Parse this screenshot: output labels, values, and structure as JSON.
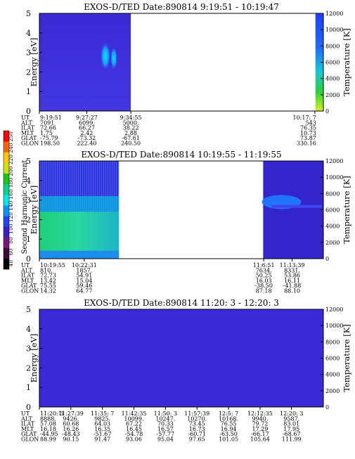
{
  "colorbar": {
    "title": "Second Harmonic Current",
    "ticks": [
      "40",
      "60",
      "80",
      "100",
      "120",
      "140",
      "160",
      "180",
      "200",
      "220",
      "240",
      "250"
    ],
    "colors": [
      "#000000",
      "#3c0a3c",
      "#78147e",
      "#3b1cc8",
      "#2244ff",
      "#0096ff",
      "#00e6e6",
      "#00d28c",
      "#14c814",
      "#c8e600",
      "#ffc800",
      "#ff6400",
      "#ff0000"
    ]
  },
  "row_labels": [
    "UT",
    "ALT",
    "ILAT",
    "MLT",
    "GLAT",
    "GLON"
  ],
  "chart_data": [
    {
      "type": "heatmap",
      "title": "EXOS-D/TED   Date:890814   9:19:51 - 10:19:47",
      "ylabel": "Energy [eV]",
      "ylim": [
        0,
        5
      ],
      "yticks": [
        "0",
        "1",
        "2",
        "3",
        "4",
        "5"
      ],
      "y2label": "Temperature [K]",
      "y2lim": [
        0,
        12000
      ],
      "y2ticks": [
        "0",
        "2000",
        "4000",
        "6000",
        "8000",
        "10000",
        "12000"
      ],
      "data_segments": [
        {
          "x_start": 0.0,
          "x_end": 0.322
        },
        {
          "x_start": 0.972,
          "x_end": 1.0
        }
      ],
      "columns": [
        {
          "x": 0.0,
          "UT": "9:19:51",
          "ALT": "7091",
          "ILAT": "72.66",
          "MLT": "1.75",
          "GLAT": "-75.79",
          "GLON": "198.50"
        },
        {
          "x": 0.167,
          "UT": "9:27:27",
          "ALT": "6099.",
          "ILAT": "66.27",
          "MLT": "2.42",
          "GLAT": "-73.32",
          "GLON": "222.40"
        },
        {
          "x": 0.322,
          "UT": "9:34:55",
          "ALT": "5000.",
          "ILAT": "38.22",
          "MLT": "2.88",
          "GLAT": "-67.61",
          "GLON": "240.50"
        },
        {
          "x": 0.97,
          "UT": "10:17: 7",
          "ALT": "543",
          "ILAT": "76.35",
          "MLT": "10.73",
          "GLAT": "73.87",
          "GLON": "330.16"
        }
      ]
    },
    {
      "type": "heatmap",
      "title": "EXOS-D/TED   Date:890814   10:19:55 - 11:19:55",
      "ylabel": "Energy [eV]",
      "ylim": [
        0,
        5
      ],
      "yticks": [
        "0",
        "1",
        "2",
        "3",
        "4",
        "5"
      ],
      "y2label": "Temperature [K]",
      "y2lim": [
        0,
        12000
      ],
      "y2ticks": [
        "0",
        "2000",
        "4000",
        "6000",
        "8000",
        "10000",
        "12000"
      ],
      "data_segments": [
        {
          "x_start": 0.0,
          "x_end": 0.28
        },
        {
          "x_start": 0.788,
          "x_end": 1.0
        }
      ],
      "columns": [
        {
          "x": 0.0,
          "UT": "10:19:55",
          "ALT": "810.",
          "ILAT": "72.73",
          "MLT": "13.42",
          "GLAT": "75.55",
          "GLON": "14.32"
        },
        {
          "x": 0.158,
          "UT": "10:22:31",
          "ALT": "1857.",
          "ILAT": "54.91",
          "MLT": "15.04",
          "GLAT": "59.46",
          "GLON": "64.77"
        },
        {
          "x": 0.79,
          "UT": "11:6:51",
          "ALT": "7634.",
          "ILAT": "50.25",
          "MLT": "16.03",
          "GLAT": "-38.50",
          "GLON": "87.18"
        },
        {
          "x": 0.89,
          "UT": "11:13:39",
          "ALT": "8331.",
          "ILAT": "53.86",
          "MLT": "16.11",
          "GLAT": "-41.88",
          "GLON": "88.10"
        }
      ]
    },
    {
      "type": "heatmap",
      "title": "EXOS-D/TED   Date:890814   11:20: 3 - 12:20: 3",
      "ylabel": "Energy [eV]",
      "ylim": [
        0,
        5
      ],
      "yticks": [
        "0",
        "1",
        "2",
        "3",
        "4",
        "5"
      ],
      "y2label": "Temperature [K]",
      "y2lim": [
        0,
        12000
      ],
      "y2ticks": [
        "0",
        "2000",
        "4000",
        "6000",
        "8000",
        "10000",
        "12000"
      ],
      "data_segments": [
        {
          "x_start": 0.0,
          "x_end": 1.0
        }
      ],
      "columns": [
        {
          "x": 0.0,
          "UT": "11:20: 3",
          "ALT": "8888.",
          "ILAT": "57.08",
          "MLT": "16.18",
          "GLAT": "-44.95",
          "GLON": "88.99"
        },
        {
          "x": 0.111,
          "UT": "11:27:39",
          "ALT": "9426.",
          "ILAT": "60.68",
          "MLT": "16.26",
          "GLAT": "-48.43",
          "GLON": "90.15"
        },
        {
          "x": 0.222,
          "UT": "11:35: 7",
          "ALT": "9825.",
          "ILAT": "64.03",
          "MLT": "16.35",
          "GLAT": "-51.67",
          "GLON": "91.47"
        },
        {
          "x": 0.333,
          "UT": "11:42:35",
          "ALT": "10099.",
          "ILAT": "67.22",
          "MLT": "16.45",
          "GLAT": "-54.78",
          "GLON": "93.06"
        },
        {
          "x": 0.444,
          "UT": "11:50: 3",
          "ALT": "10247.",
          "ILAT": "70.33",
          "MLT": "16.57",
          "GLAT": "-57.77",
          "GLON": "95.04"
        },
        {
          "x": 0.555,
          "UT": "11:57:39",
          "ALT": "10270.",
          "ILAT": "73.45",
          "MLT": "16.73",
          "GLAT": "-60.71",
          "GLON": "97.65"
        },
        {
          "x": 0.666,
          "UT": "12:5: 7",
          "ALT": "10168.",
          "ILAT": "76.55",
          "MLT": "16.94",
          "GLAT": "-63.50",
          "GLON": "101.05"
        },
        {
          "x": 0.777,
          "UT": "12:12:35",
          "ALT": "9940.",
          "ILAT": "79.72",
          "MLT": "17.29",
          "GLAT": "-66.17",
          "GLON": "105.64"
        },
        {
          "x": 0.888,
          "UT": "12:20: 3",
          "ALT": "9587.",
          "ILAT": "83.01",
          "MLT": "17.95",
          "GLAT": "-68.67",
          "GLON": "111.99"
        }
      ]
    }
  ]
}
